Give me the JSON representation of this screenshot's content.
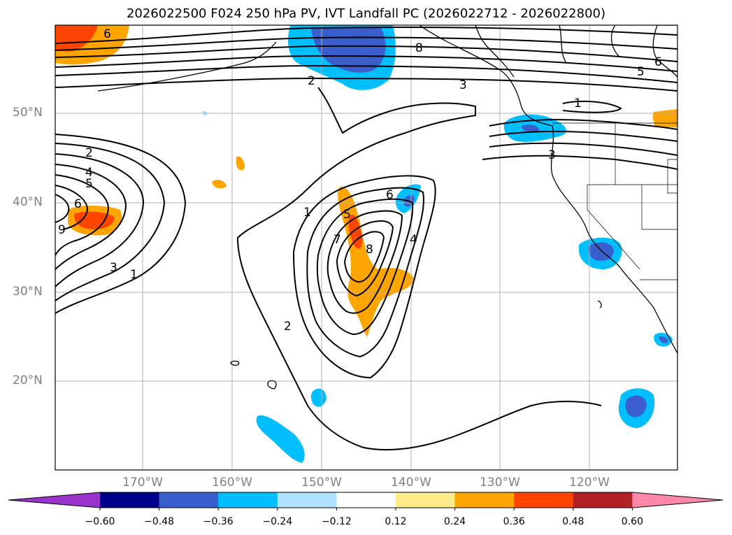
{
  "title": "2026022500 F024 250 hPa PV, IVT Landfall PC (2026022712 - 2026022800)",
  "lat_labels": [
    "50°N",
    "40°N",
    "30°N",
    "20°N"
  ],
  "lon_labels": [
    "170°W",
    "160°W",
    "150°W",
    "140°W",
    "130°W",
    "120°W"
  ],
  "colorbar": {
    "ticks": [
      "−0.60",
      "−0.48",
      "−0.36",
      "−0.24",
      "−0.12",
      "0.12",
      "0.24",
      "0.36",
      "0.48",
      "0.60"
    ],
    "colors": [
      "#9933cc",
      "#00008b",
      "#3a5fcd",
      "#00bfff",
      "#b0e2ff",
      "#ffffff",
      "#ffec8b",
      "#ffa500",
      "#ff4500",
      "#b22222",
      "#ff88aa",
      "#ff88aa"
    ]
  },
  "contour_labels": [
    "6",
    "8",
    "2",
    "3",
    "5",
    "6",
    "1",
    "2",
    "4",
    "5",
    "6",
    "9",
    "3",
    "1",
    "1",
    "6",
    "5",
    "7",
    "8",
    "4",
    "2",
    "3"
  ]
}
